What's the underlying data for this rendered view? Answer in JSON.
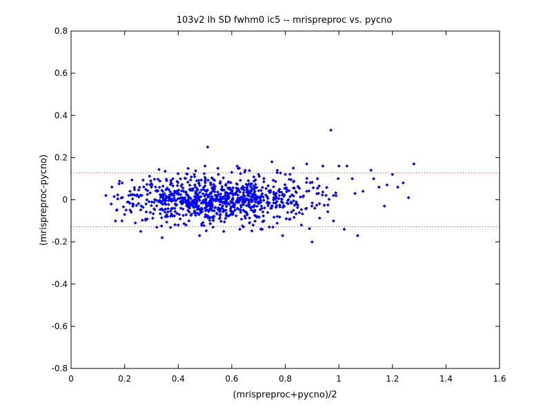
{
  "chart_data": {
    "type": "scatter",
    "title": "103v2 lh SD fwhm0 ic5 -- mrispreproc vs. pycno",
    "xlabel": "(mrispreproc+pycno)/2",
    "ylabel": "(mrispreproc-pycno)",
    "xlim": [
      0,
      1.6
    ],
    "ylim": [
      -0.8,
      0.8
    ],
    "xticks": [
      "0",
      "0.2",
      "0.4",
      "0.6",
      "0.8",
      "1",
      "1.2",
      "1.4",
      "1.6"
    ],
    "yticks": [
      "0.8",
      "0.6",
      "0.4",
      "0.2",
      "0",
      "-0.2",
      "-0.4",
      "-0.6",
      "-0.8"
    ],
    "grid": false,
    "reference_lines": [
      {
        "y": 0.127,
        "style": "dotted",
        "color": "#ff0000"
      },
      {
        "y": -0.127,
        "style": "dotted",
        "color": "#ff0000"
      }
    ],
    "series": [
      {
        "color": "#0000ff",
        "marker": "diamond",
        "points": [
          [
            0.13,
            0.02
          ],
          [
            0.15,
            -0.02
          ],
          [
            0.17,
            -0.05
          ],
          [
            0.19,
            -0.1
          ],
          [
            0.2,
            -0.07
          ],
          [
            0.22,
            0.04
          ],
          [
            0.24,
            -0.11
          ],
          [
            0.26,
            -0.15
          ],
          [
            0.28,
            -0.02
          ],
          [
            0.3,
            0.06
          ],
          [
            0.32,
            -0.13
          ],
          [
            0.34,
            -0.18
          ],
          [
            0.36,
            -0.08
          ],
          [
            0.38,
            0.1
          ],
          [
            0.4,
            -0.12
          ],
          [
            0.42,
            0.04
          ],
          [
            0.44,
            -0.1
          ],
          [
            0.46,
            0.12
          ],
          [
            0.48,
            -0.17
          ],
          [
            0.5,
            0.16
          ],
          [
            0.51,
            0.25
          ],
          [
            0.53,
            -0.13
          ],
          [
            0.55,
            0.12
          ],
          [
            0.57,
            -0.15
          ],
          [
            0.6,
            0.13
          ],
          [
            0.62,
            0.16
          ],
          [
            0.63,
            -0.14
          ],
          [
            0.65,
            0.14
          ],
          [
            0.68,
            -0.12
          ],
          [
            0.7,
            0.12
          ],
          [
            0.72,
            -0.1
          ],
          [
            0.75,
            0.18
          ],
          [
            0.77,
            0.14
          ],
          [
            0.79,
            -0.17
          ],
          [
            0.8,
            0.12
          ],
          [
            0.83,
            0.15
          ],
          [
            0.86,
            -0.12
          ],
          [
            0.88,
            0.17
          ],
          [
            0.9,
            -0.2
          ],
          [
            0.92,
            0.1
          ],
          [
            0.94,
            0.16
          ],
          [
            0.97,
            0.33
          ],
          [
            0.98,
            -0.1
          ],
          [
            1.0,
            0.16
          ],
          [
            1.02,
            -0.14
          ],
          [
            1.03,
            0.16
          ],
          [
            1.05,
            0.1
          ],
          [
            1.07,
            -0.17
          ],
          [
            1.09,
            0.04
          ],
          [
            1.12,
            0.14
          ],
          [
            1.13,
            0.1
          ],
          [
            1.15,
            0.06
          ],
          [
            1.18,
            0.07
          ],
          [
            1.2,
            0.12
          ],
          [
            1.22,
            0.06
          ],
          [
            1.24,
            0.08
          ],
          [
            1.26,
            0.01
          ],
          [
            1.28,
            0.17
          ],
          [
            1.17,
            -0.03
          ],
          [
            1.06,
            0.03
          ]
        ],
        "cloud": {
          "count": 900,
          "x_range": [
            0.15,
            1.0
          ],
          "x_center": 0.55,
          "y_mean": 0.0,
          "y_sd": 0.055
        }
      }
    ]
  }
}
